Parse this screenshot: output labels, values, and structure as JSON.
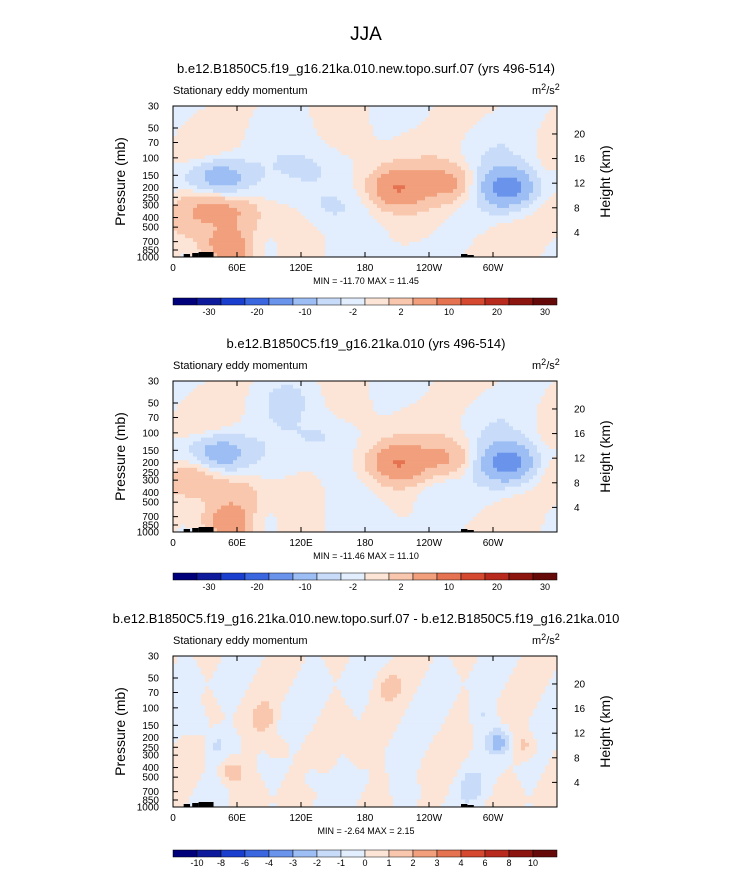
{
  "figure": {
    "season": "JJA"
  },
  "chart_data": [
    {
      "type": "heatmap",
      "title": "b.e12.B1850C5.f19_g16.21ka.010.new.topo.surf.07 (yrs 496-514)",
      "left_label": "Stationary eddy momentum",
      "units_base": "m",
      "units_exp1": "2",
      "units_mid": "/s",
      "units_exp2": "2",
      "ylabel": "Pressure (mb)",
      "ylabel_right": "Height (km)",
      "x_ticks": [
        "0",
        "60E",
        "120E",
        "180",
        "120W",
        "60W"
      ],
      "y_ticks": [
        "30",
        "50",
        "70",
        "100",
        "150",
        "200",
        "250",
        "300",
        "400",
        "500",
        "700",
        "850",
        "1000"
      ],
      "height_ticks": [
        "20",
        "16",
        "12",
        "8",
        "4"
      ],
      "stats": "MIN = -11.70  MAX =  11.45",
      "min": -11.7,
      "max": 11.45,
      "colorbar_levels": [
        "-30",
        "-20",
        "-10",
        "-2",
        "2",
        "10",
        "20",
        "30"
      ],
      "features": [
        {
          "lon": 45,
          "p": 160,
          "value": -8
        },
        {
          "lon": 20,
          "p": 170,
          "value": -3
        },
        {
          "lon": 30,
          "p": 300,
          "value": 4
        },
        {
          "lon": 60,
          "p": 350,
          "value": 5
        },
        {
          "lon": 55,
          "p": 820,
          "value": 11.45
        },
        {
          "lon": 80,
          "p": 850,
          "value": -4
        },
        {
          "lon": 210,
          "p": 200,
          "value": 9
        },
        {
          "lon": 260,
          "p": 180,
          "value": 6
        },
        {
          "lon": 315,
          "p": 200,
          "value": -11.7
        },
        {
          "lon": 130,
          "p": 130,
          "value": -2
        },
        {
          "lon": 145,
          "p": 300,
          "value": -2
        },
        {
          "lon": 20,
          "p": 480,
          "value": 2
        }
      ]
    },
    {
      "type": "heatmap",
      "title": "b.e12.B1850C5.f19_g16.21ka.010 (yrs 496-514)",
      "left_label": "Stationary eddy momentum",
      "units_base": "m",
      "units_exp1": "2",
      "units_mid": "/s",
      "units_exp2": "2",
      "ylabel": "Pressure (mb)",
      "ylabel_right": "Height (km)",
      "x_ticks": [
        "0",
        "60E",
        "120E",
        "180",
        "120W",
        "60W"
      ],
      "y_ticks": [
        "30",
        "50",
        "70",
        "100",
        "150",
        "200",
        "250",
        "300",
        "400",
        "500",
        "700",
        "850",
        "1000"
      ],
      "height_ticks": [
        "20",
        "16",
        "12",
        "8",
        "4"
      ],
      "stats": "MIN = -11.46  MAX =  11.10",
      "min": -11.46,
      "max": 11.1,
      "colorbar_levels": [
        "-30",
        "-20",
        "-10",
        "-2",
        "2",
        "10",
        "20",
        "30"
      ],
      "features": [
        {
          "lon": 45,
          "p": 160,
          "value": -8
        },
        {
          "lon": 20,
          "p": 170,
          "value": -3
        },
        {
          "lon": 20,
          "p": 270,
          "value": 4
        },
        {
          "lon": 60,
          "p": 400,
          "value": 4
        },
        {
          "lon": 55,
          "p": 830,
          "value": 11.1
        },
        {
          "lon": 80,
          "p": 850,
          "value": -4
        },
        {
          "lon": 210,
          "p": 200,
          "value": 9
        },
        {
          "lon": 260,
          "p": 180,
          "value": 5
        },
        {
          "lon": 315,
          "p": 200,
          "value": -11.46
        },
        {
          "lon": 140,
          "p": 110,
          "value": -2
        },
        {
          "lon": 250,
          "p": 400,
          "value": -2
        },
        {
          "lon": 110,
          "p": 45,
          "value": -2
        }
      ]
    },
    {
      "type": "heatmap",
      "title": "b.e12.B1850C5.f19_g16.21ka.010.new.topo.surf.07 - b.e12.B1850C5.f19_g16.21ka.010",
      "left_label": "Stationary eddy momentum",
      "units_base": "m",
      "units_exp1": "2",
      "units_mid": "/s",
      "units_exp2": "2",
      "ylabel": "Pressure (mb)",
      "ylabel_right": "Height (km)",
      "x_ticks": [
        "0",
        "60E",
        "120E",
        "180",
        "120W",
        "60W"
      ],
      "y_ticks": [
        "30",
        "50",
        "70",
        "100",
        "150",
        "200",
        "250",
        "300",
        "400",
        "500",
        "700",
        "850",
        "1000"
      ],
      "height_ticks": [
        "20",
        "16",
        "12",
        "8",
        "4"
      ],
      "stats": "MIN =  -2.64  MAX =   2.15",
      "min": -2.64,
      "max": 2.15,
      "colorbar_levels": [
        "-10",
        "-8",
        "-6",
        "-4",
        "-3",
        "-2",
        "-1",
        "0",
        "1",
        "2",
        "3",
        "4",
        "6",
        "8",
        "10"
      ],
      "features": [
        {
          "lon": 55,
          "p": 450,
          "value": 2.15
        },
        {
          "lon": 85,
          "p": 130,
          "value": 1.5
        },
        {
          "lon": 330,
          "p": 240,
          "value": 1.5
        },
        {
          "lon": 305,
          "p": 220,
          "value": -2.64
        },
        {
          "lon": 20,
          "p": 140,
          "value": -1.2
        },
        {
          "lon": 40,
          "p": 230,
          "value": -1.2
        },
        {
          "lon": 280,
          "p": 600,
          "value": -1.2
        },
        {
          "lon": 290,
          "p": 120,
          "value": -1
        },
        {
          "lon": 175,
          "p": 300,
          "value": 1
        },
        {
          "lon": 200,
          "p": 60,
          "value": 1
        },
        {
          "lon": 100,
          "p": 250,
          "value": 1
        },
        {
          "lon": 220,
          "p": 700,
          "value": -1
        },
        {
          "lon": 130,
          "p": 500,
          "value": -1
        }
      ]
    }
  ],
  "colors": {
    "scale_a": [
      "#00007a",
      "#0d1a9c",
      "#1a3fcf",
      "#3a67e0",
      "#6a93ec",
      "#9dbef4",
      "#c8dcfa",
      "#e2edfd",
      "#fce5d6",
      "#f9c7ad",
      "#f19f7c",
      "#e57251",
      "#d44930",
      "#b82a1d",
      "#8c1510",
      "#650a09"
    ],
    "scale_b": [
      "#00007a",
      "#0d1a9c",
      "#1a3fcf",
      "#3a67e0",
      "#6a93ec",
      "#9dbef4",
      "#c8dcfa",
      "#e2edfd",
      "#fce5d6",
      "#f9c7ad",
      "#f19f7c",
      "#e57251",
      "#d44930",
      "#b82a1d",
      "#8c1510",
      "#650a09"
    ]
  }
}
